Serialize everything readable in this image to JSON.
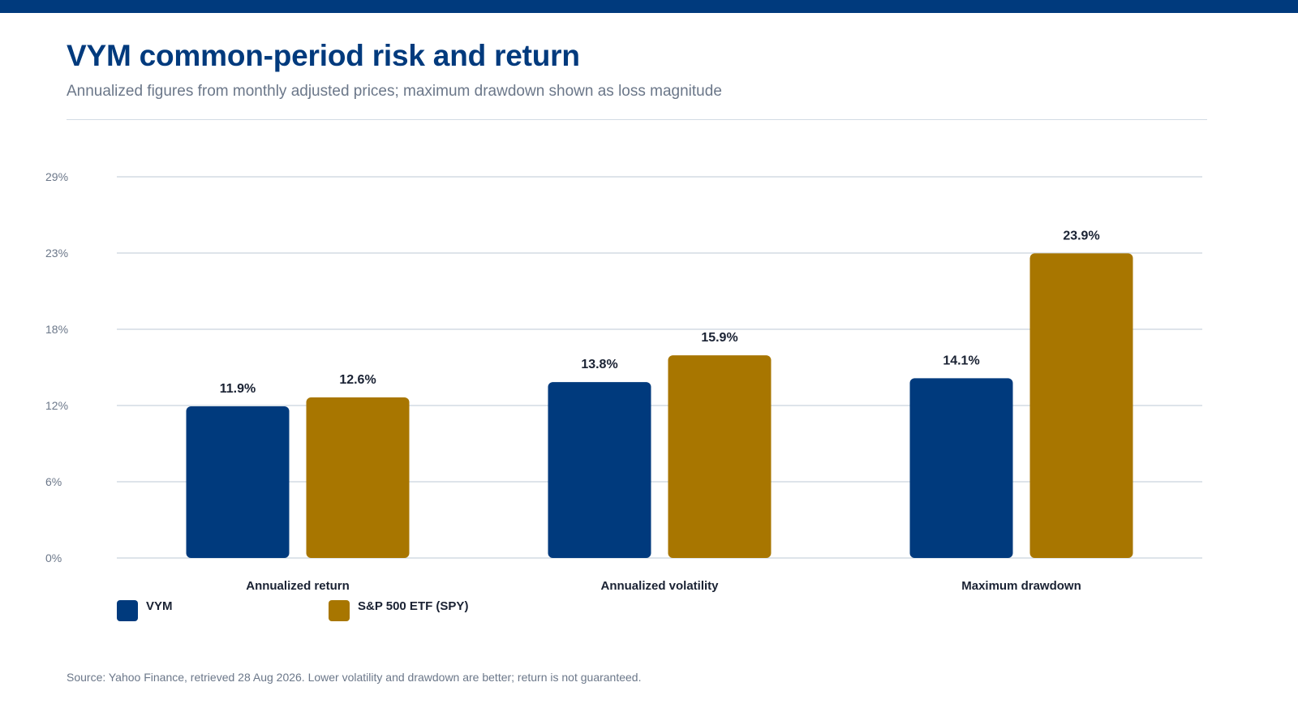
{
  "header": {
    "title": "VYM common-period risk and return",
    "subtitle": "Annualized figures from monthly adjusted prices; maximum drawdown shown as loss magnitude"
  },
  "colors": {
    "accent": "#003A7D",
    "series_vym": "#003A7D",
    "series_spy": "#A87600",
    "gridline": "#D3DBE4"
  },
  "legend": {
    "items": [
      {
        "label": "VYM",
        "color": "#003A7D"
      },
      {
        "label": "S&P 500 ETF (SPY)",
        "color": "#A87600"
      }
    ]
  },
  "chart_data": {
    "type": "bar",
    "categories": [
      "Annualized return",
      "Annualized volatility",
      "Maximum drawdown"
    ],
    "series": [
      {
        "name": "VYM",
        "values": [
          11.9,
          13.8,
          14.1
        ],
        "color": "#003A7D"
      },
      {
        "name": "S&P 500 ETF (SPY)",
        "values": [
          12.6,
          15.9,
          23.9
        ],
        "color": "#A87600"
      }
    ],
    "yticks": [
      "0%",
      "6%",
      "12%",
      "18%",
      "23%",
      "29%"
    ],
    "ylim": [
      0,
      29.9
    ],
    "grid": true,
    "legend_position": "bottom-left",
    "value_suffix": "%"
  },
  "footer": {
    "source": "Source: Yahoo Finance, retrieved 28 Aug 2026. Lower volatility and drawdown are better; return is not guaranteed."
  }
}
